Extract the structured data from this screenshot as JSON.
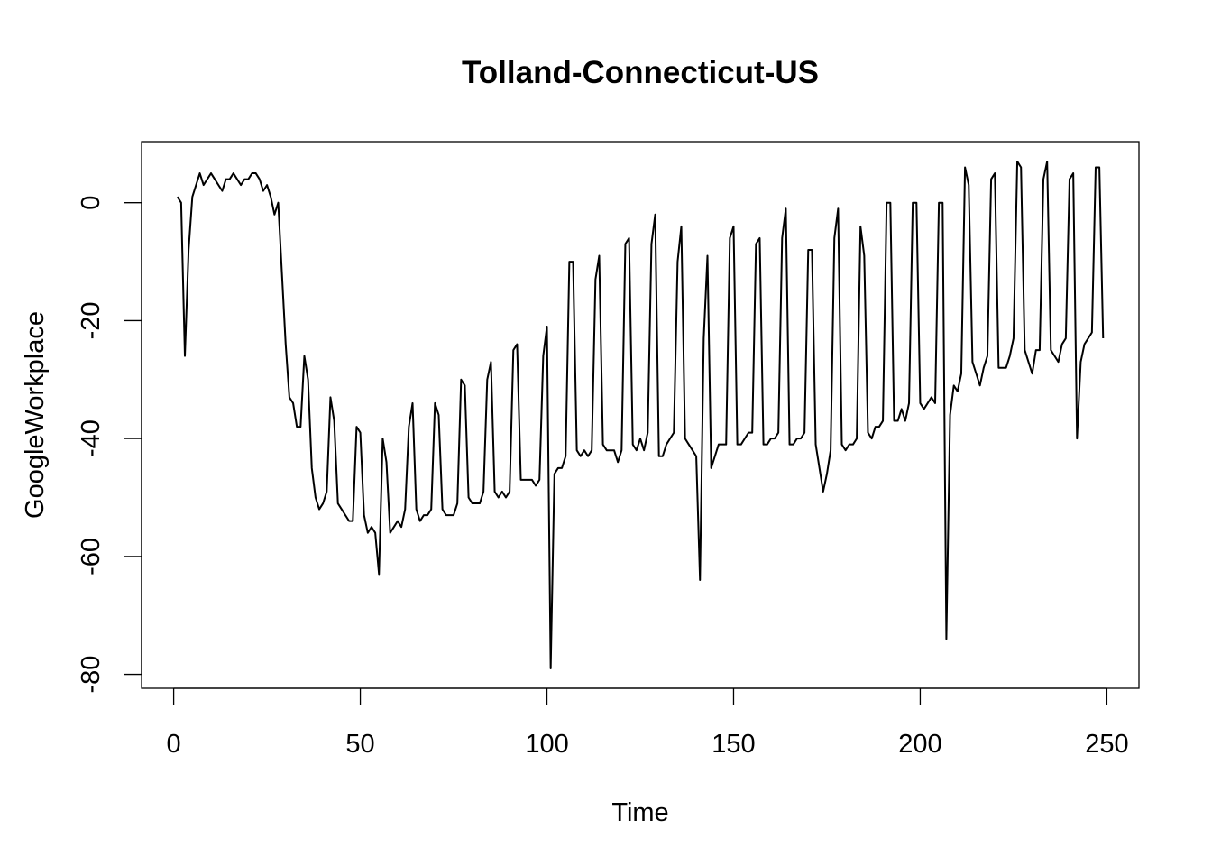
{
  "chart_data": {
    "type": "line",
    "title": "Tolland-Connecticut-US",
    "xlabel": "Time",
    "ylabel": "GoogleWorkplace",
    "xlim": [
      -8.6,
      258.6
    ],
    "ylim": [
      -82.36,
      10.36
    ],
    "x_ticks": [
      0,
      50,
      100,
      150,
      200,
      250
    ],
    "x_tick_labels": [
      "0",
      "50",
      "100",
      "150",
      "200",
      "250"
    ],
    "y_ticks": [
      -80,
      -60,
      -40,
      -20,
      0
    ],
    "y_tick_labels": [
      "-80",
      "-60",
      "-40",
      "-20",
      "0"
    ],
    "grid": false,
    "legend": "none",
    "line_color": "#000000",
    "x_start": 1,
    "values": [
      1,
      0,
      -26,
      -8,
      1,
      3,
      5,
      3,
      4,
      5,
      4,
      3,
      2,
      4,
      4,
      5,
      4,
      3,
      4,
      4,
      5,
      5,
      4,
      2,
      3,
      1,
      -2,
      0,
      -12,
      -24,
      -33,
      -34,
      -38,
      -38,
      -26,
      -30,
      -45,
      -50,
      -52,
      -51,
      -49,
      -33,
      -37,
      -51,
      -52,
      -53,
      -54,
      -54,
      -38,
      -39,
      -53,
      -56,
      -55,
      -56,
      -63,
      -40,
      -44,
      -56,
      -55,
      -54,
      -55,
      -52,
      -38,
      -34,
      -52,
      -54,
      -53,
      -53,
      -52,
      -34,
      -36,
      -52,
      -53,
      -53,
      -53,
      -51,
      -30,
      -31,
      -50,
      -51,
      -51,
      -51,
      -49,
      -30,
      -27,
      -49,
      -50,
      -49,
      -50,
      -49,
      -25,
      -24,
      -47,
      -47,
      -47,
      -47,
      -48,
      -47,
      -26,
      -21,
      -79,
      -46,
      -45,
      -45,
      -43,
      -10,
      -10,
      -42,
      -43,
      -42,
      -43,
      -42,
      -13,
      -9,
      -41,
      -42,
      -42,
      -42,
      -44,
      -42,
      -7,
      -6,
      -41,
      -42,
      -40,
      -42,
      -39,
      -7,
      -2,
      -43,
      -43,
      -41,
      -40,
      -39,
      -10,
      -4,
      -40,
      -41,
      -42,
      -43,
      -64,
      -23,
      -9,
      -45,
      -43,
      -41,
      -41,
      -41,
      -6,
      -4,
      -41,
      -41,
      -40,
      -39,
      -39,
      -7,
      -6,
      -41,
      -41,
      -40,
      -40,
      -39,
      -6,
      -1,
      -41,
      -41,
      -40,
      -40,
      -39,
      -8,
      -8,
      -41,
      -45,
      -49,
      -46,
      -42,
      -6,
      -1,
      -41,
      -42,
      -41,
      -41,
      -40,
      -4,
      -9,
      -39,
      -40,
      -38,
      -38,
      -37,
      0,
      0,
      -37,
      -37,
      -35,
      -37,
      -34,
      0,
      0,
      -34,
      -35,
      -34,
      -33,
      -34,
      0,
      0,
      -74,
      -36,
      -31,
      -32,
      -29,
      6,
      3,
      -27,
      -29,
      -31,
      -28,
      -26,
      4,
      5,
      -28,
      -28,
      -28,
      -26,
      -23,
      7,
      6,
      -25,
      -27,
      -29,
      -25,
      -25,
      4,
      7,
      -25,
      -26,
      -27,
      -24,
      -23,
      4,
      5,
      -40,
      -27,
      -24,
      -23,
      -22,
      6,
      6,
      -23
    ]
  }
}
